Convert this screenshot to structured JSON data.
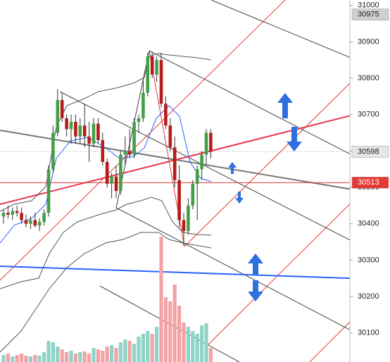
{
  "chart_data": {
    "type": "candlestick",
    "ylim": [
      30020,
      31015
    ],
    "yticks": [
      30100,
      30200,
      30300,
      30400,
      30500,
      30600,
      30700,
      30800,
      30900,
      31000
    ],
    "up_color": "#43a047",
    "down_color": "#b71c1c",
    "volume_up_color": "#8fd3c8",
    "volume_down_color": "#f3a3a3",
    "open": [
      30420,
      30430,
      30425,
      30435,
      30430,
      30410,
      30400,
      30410,
      30395,
      30405,
      30430,
      30550,
      30650,
      30740,
      30690,
      30660,
      30680,
      30640,
      30670,
      30640,
      30620,
      30675,
      30630,
      30570,
      30510,
      30530,
      30490,
      30590,
      30600,
      30590,
      30680,
      30690,
      30760,
      30860,
      30810,
      30850,
      30730,
      30670,
      30610,
      30520,
      30410,
      30380,
      30450,
      30510,
      30550,
      30590,
      30650
    ],
    "high": [
      30440,
      30450,
      30445,
      30450,
      30445,
      30425,
      30420,
      30430,
      30415,
      30440,
      30560,
      30670,
      30770,
      30760,
      30700,
      30700,
      30700,
      30690,
      30730,
      30680,
      30690,
      30690,
      30650,
      30580,
      30540,
      30560,
      30600,
      30640,
      30660,
      30690,
      30700,
      30800,
      30870,
      30870,
      30860,
      30870,
      30750,
      30690,
      30640,
      30560,
      30430,
      30470,
      30520,
      30560,
      30600,
      30660,
      30660
    ],
    "low": [
      30400,
      30415,
      30410,
      30420,
      30400,
      30390,
      30385,
      30390,
      30380,
      30395,
      30420,
      30540,
      30640,
      30680,
      30640,
      30620,
      30620,
      30620,
      30610,
      30570,
      30610,
      30620,
      30560,
      30500,
      30470,
      30470,
      30480,
      30560,
      30580,
      30580,
      30650,
      30680,
      30750,
      30800,
      30790,
      30720,
      30660,
      30600,
      30500,
      30390,
      30340,
      30370,
      30440,
      30410,
      30520,
      30560,
      30580
    ],
    "close": [
      30430,
      30425,
      30435,
      30430,
      30410,
      30400,
      30410,
      30395,
      30405,
      30430,
      30550,
      30650,
      30740,
      30690,
      30660,
      30680,
      30640,
      30670,
      30640,
      30620,
      30675,
      30630,
      30570,
      30510,
      30530,
      30490,
      30590,
      30600,
      30590,
      30680,
      30690,
      30760,
      30860,
      30810,
      30850,
      30730,
      30670,
      30610,
      30520,
      30410,
      30380,
      30450,
      30510,
      30550,
      30590,
      30650,
      30598
    ],
    "volume": [
      10,
      12,
      8,
      10,
      12,
      9,
      8,
      10,
      9,
      14,
      30,
      28,
      22,
      18,
      14,
      16,
      12,
      14,
      15,
      12,
      20,
      18,
      16,
      22,
      24,
      20,
      28,
      32,
      30,
      26,
      36,
      40,
      44,
      40,
      50,
      178,
      92,
      86,
      110,
      80,
      56,
      50,
      44,
      40,
      52,
      55,
      20
    ],
    "price_markers": [
      30975,
      30598,
      30513
    ],
    "marker_fills": [
      "#cfcfcf",
      "#e6e6e6",
      "#e53935"
    ],
    "marker_text_colors": [
      "#222222",
      "#222222",
      "#ffffff"
    ]
  }
}
